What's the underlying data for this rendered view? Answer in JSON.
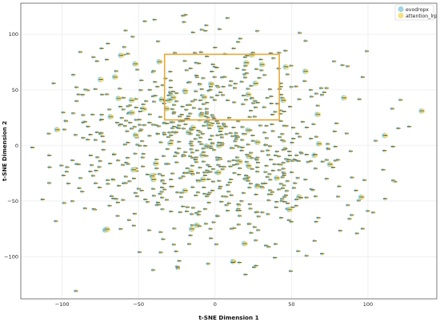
{
  "chart_data": {
    "type": "scatter",
    "title": "",
    "xlabel": "t-SNE Dimension 1",
    "ylabel": "t-SNE Dimension 2",
    "xlim": [
      -127,
      145
    ],
    "ylim": [
      -138,
      128
    ],
    "x_ticks": [
      -100,
      -50,
      0,
      50,
      100
    ],
    "y_ticks": [
      -100,
      -50,
      0,
      50,
      100
    ],
    "grid": true,
    "legend_position": "top-right",
    "highlight_box": {
      "x0": -33,
      "x1": 42,
      "y0": 23,
      "y1": 82,
      "color": "#e8a93b"
    },
    "series": [
      {
        "name": "evodropx",
        "color": "#7fc8d6",
        "point_count": 900
      },
      {
        "name": "attention_lrp",
        "color": "#f3dc6e",
        "point_count": 900
      }
    ],
    "distribution": "dense cloud centred near (0, 0) with roughly 900 paired points; each point rendered as a small dash-like marker with overlapping colored circles"
  }
}
